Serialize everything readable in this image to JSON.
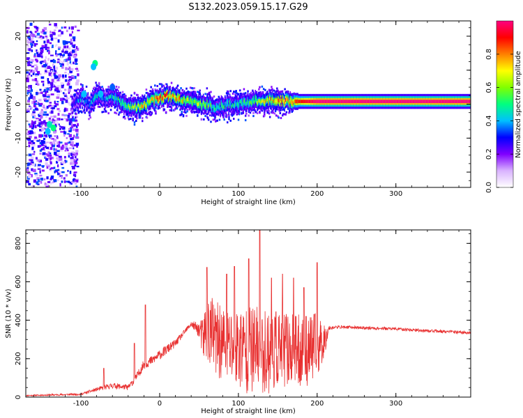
{
  "title": "S132.2023.059.15.17.G29",
  "chart_data": [
    {
      "type": "heatmap",
      "xlabel": "Height of straight line (km)",
      "ylabel": "Frequency (Hz)",
      "xlim": [
        -170,
        395
      ],
      "ylim": [
        -24.5,
        24.5
      ],
      "x_ticks": [
        -100,
        0,
        100,
        200,
        300
      ],
      "y_ticks": [
        -20,
        -10,
        0,
        10,
        20
      ],
      "x_tick_labels": [
        "-100",
        "0",
        "100",
        "200",
        "300"
      ],
      "y_tick_labels": [
        "-20",
        "-10",
        "0",
        "10",
        "20"
      ],
      "colorbar": {
        "label": "Normalized spectral amplitude",
        "range": [
          0,
          1
        ],
        "ticks": [
          0.0,
          0.2,
          0.4,
          0.6,
          0.8
        ],
        "tick_labels": [
          "0.0",
          "0.2",
          "0.4",
          "0.6",
          "0.8"
        ],
        "colormap": [
          "#ffffff",
          "#d9b3ff",
          "#8000ff",
          "#0000ff",
          "#00c0ff",
          "#00ff80",
          "#80ff00",
          "#ffff00",
          "#ff8000",
          "#ff0000",
          "#ff0080"
        ]
      },
      "ridge": {
        "x": [
          -110,
          -100,
          -90,
          -80,
          -70,
          -60,
          -50,
          -40,
          -30,
          -20,
          -10,
          0,
          10,
          20,
          30,
          40,
          50,
          60,
          70,
          80,
          90,
          100,
          110,
          120,
          130,
          140,
          150,
          160,
          170,
          180,
          200,
          250,
          300,
          350,
          395
        ],
        "freq": [
          0,
          2,
          0,
          3,
          1,
          2,
          0.5,
          -1,
          -1,
          0,
          1,
          2,
          2.5,
          2,
          1,
          1,
          0,
          0,
          -1,
          -0.5,
          0,
          0,
          0.5,
          1,
          1,
          1,
          1,
          0.8,
          0.8,
          0.8,
          0.8,
          0.8,
          0.8,
          0.8,
          0.8
        ],
        "amplitude": [
          0.3,
          0.4,
          0.35,
          0.45,
          0.35,
          0.45,
          0.5,
          0.55,
          0.6,
          0.7,
          0.75,
          0.85,
          0.8,
          0.75,
          0.65,
          0.55,
          0.6,
          0.55,
          0.45,
          0.5,
          0.45,
          0.5,
          0.5,
          0.55,
          0.65,
          0.7,
          0.75,
          0.8,
          0.85,
          0.9,
          1.0,
          1.0,
          1.0,
          1.0,
          1.0
        ]
      }
    },
    {
      "type": "line",
      "xlabel": "Height of straight line (km)",
      "ylabel": "SNR (10 * v/v)",
      "xlim": [
        -170,
        395
      ],
      "ylim": [
        0,
        870
      ],
      "x_ticks": [
        -100,
        0,
        100,
        200,
        300
      ],
      "y_ticks": [
        0,
        200,
        400,
        600,
        800
      ],
      "x_tick_labels": [
        "-100",
        "0",
        "100",
        "200",
        "300"
      ],
      "y_tick_labels": [
        "0",
        "200",
        "400",
        "600",
        "800"
      ],
      "color": "#e83030",
      "envelope": {
        "x": [
          -170,
          -100,
          -80,
          -60,
          -40,
          -30,
          -20,
          -10,
          0,
          10,
          20,
          30,
          40,
          50,
          55,
          60,
          65,
          70,
          80,
          90,
          100,
          110,
          120,
          130,
          140,
          150,
          160,
          170,
          180,
          190,
          200,
          210,
          215,
          230,
          260,
          300,
          340,
          395
        ],
        "mean": [
          8,
          15,
          40,
          60,
          50,
          100,
          170,
          190,
          220,
          250,
          280,
          330,
          380,
          350,
          300,
          360,
          340,
          300,
          280,
          260,
          260,
          250,
          240,
          240,
          240,
          250,
          250,
          240,
          240,
          250,
          260,
          300,
          360,
          365,
          360,
          355,
          345,
          335
        ],
        "spread": [
          3,
          6,
          10,
          15,
          15,
          20,
          25,
          25,
          25,
          25,
          20,
          15,
          15,
          40,
          120,
          180,
          200,
          200,
          200,
          210,
          220,
          230,
          240,
          230,
          220,
          210,
          200,
          190,
          190,
          190,
          180,
          80,
          10,
          8,
          8,
          8,
          8,
          8
        ]
      },
      "peaks": [
        {
          "x": -71,
          "y": 150
        },
        {
          "x": -32,
          "y": 280
        },
        {
          "x": -18,
          "y": 480
        },
        {
          "x": 60,
          "y": 675
        },
        {
          "x": 85,
          "y": 640
        },
        {
          "x": 95,
          "y": 680
        },
        {
          "x": 113,
          "y": 720
        },
        {
          "x": 127,
          "y": 880
        },
        {
          "x": 142,
          "y": 620
        },
        {
          "x": 156,
          "y": 640
        },
        {
          "x": 170,
          "y": 620
        },
        {
          "x": 183,
          "y": 570
        },
        {
          "x": 200,
          "y": 700
        }
      ]
    }
  ]
}
